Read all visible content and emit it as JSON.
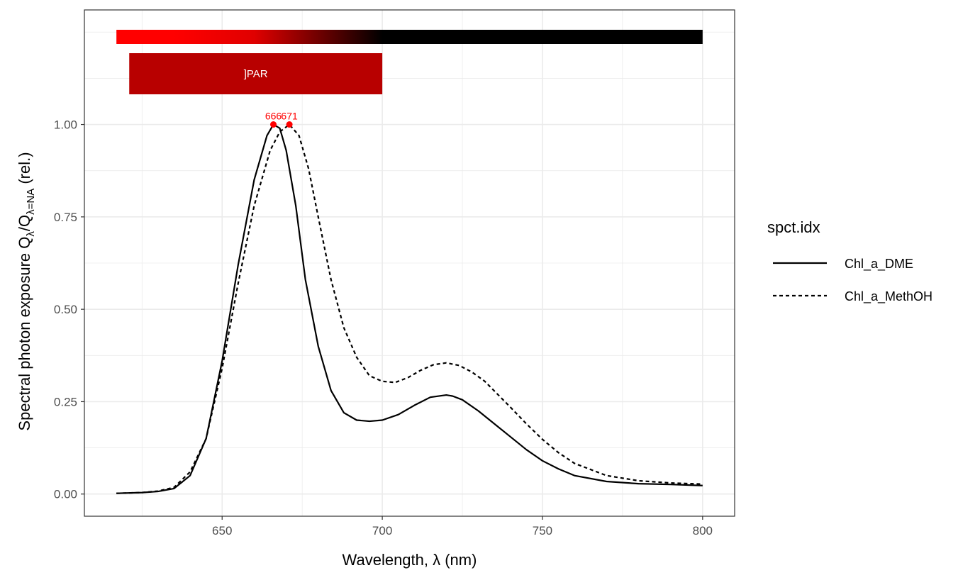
{
  "chart_data": {
    "type": "line",
    "xlabel": "Wavelength, λ (nm)",
    "ylabel": {
      "prefix": "Spectral  photon  exposure  Q",
      "sub1": "λ",
      "mid": "/Q",
      "sub2": "λ=NA",
      "suffix": "  (rel.)"
    },
    "xlim": [
      607,
      810
    ],
    "ylim": [
      -0.06,
      1.31
    ],
    "x_ticks": [
      650,
      700,
      750,
      800
    ],
    "y_ticks": [
      0.0,
      0.25,
      0.5,
      0.75,
      1.0
    ],
    "y_tick_labels": [
      "0.00",
      "0.25",
      "0.50",
      "0.75",
      "1.00"
    ],
    "grid": true,
    "legend": {
      "title": "spct.idx",
      "placement": "right",
      "entries": [
        "Chl_a_DME",
        "Chl_a_MethOH"
      ]
    },
    "series": [
      {
        "name": "Chl_a_DME",
        "line": "solid",
        "x": [
          617,
          625,
          630,
          635,
          640,
          645,
          650,
          655,
          660,
          664,
          666,
          668,
          670,
          673,
          676,
          680,
          684,
          688,
          692,
          696,
          700,
          705,
          710,
          715,
          720,
          722,
          725,
          730,
          735,
          740,
          745,
          750,
          755,
          760,
          770,
          780,
          790,
          800
        ],
        "y": [
          0.002,
          0.004,
          0.007,
          0.015,
          0.05,
          0.15,
          0.36,
          0.62,
          0.85,
          0.97,
          1.0,
          0.99,
          0.93,
          0.78,
          0.58,
          0.4,
          0.28,
          0.22,
          0.2,
          0.197,
          0.2,
          0.215,
          0.24,
          0.262,
          0.268,
          0.265,
          0.255,
          0.225,
          0.19,
          0.155,
          0.12,
          0.09,
          0.068,
          0.05,
          0.034,
          0.028,
          0.026,
          0.023
        ]
      },
      {
        "name": "Chl_a_MethOH",
        "line": "dashed",
        "x": [
          617,
          625,
          630,
          635,
          640,
          645,
          650,
          655,
          660,
          665,
          668,
          671,
          674,
          677,
          680,
          684,
          688,
          692,
          696,
          700,
          704,
          708,
          712,
          716,
          720,
          724,
          728,
          732,
          736,
          740,
          745,
          750,
          755,
          760,
          770,
          780,
          790,
          800
        ],
        "y": [
          0.002,
          0.004,
          0.008,
          0.018,
          0.06,
          0.15,
          0.34,
          0.57,
          0.78,
          0.93,
          0.98,
          1.0,
          0.97,
          0.88,
          0.75,
          0.58,
          0.45,
          0.37,
          0.32,
          0.305,
          0.302,
          0.315,
          0.335,
          0.35,
          0.355,
          0.348,
          0.33,
          0.305,
          0.27,
          0.235,
          0.19,
          0.148,
          0.112,
          0.083,
          0.05,
          0.036,
          0.03,
          0.027
        ]
      }
    ],
    "peaks": [
      {
        "x": 666,
        "y": 1.0,
        "label": "666"
      },
      {
        "x": 671,
        "y": 1.0,
        "label": "671"
      }
    ],
    "bands": {
      "wavelength_bar": {
        "from": 617,
        "to": 800,
        "colors": [
          "#ff0000",
          "#ff0000",
          "#e00000",
          "#000000",
          "#000000"
        ],
        "stops": [
          617,
          635,
          660,
          700,
          800
        ]
      },
      "par": {
        "from": 621,
        "to": 700,
        "label": "]PAR",
        "color": "#b80000"
      }
    }
  }
}
